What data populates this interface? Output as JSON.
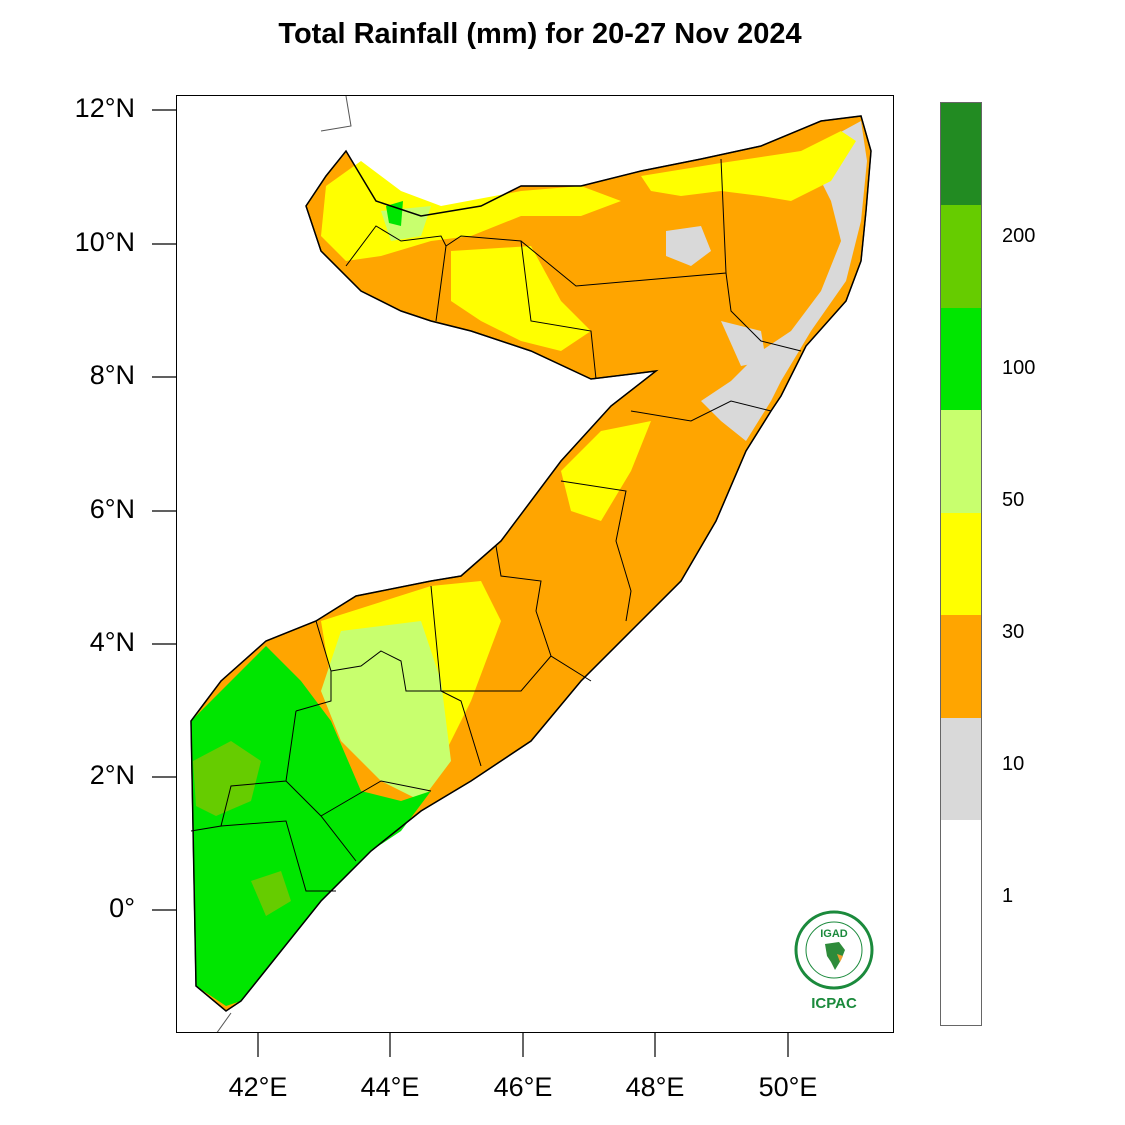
{
  "title": "Total Rainfall (mm) for 20-27 Nov 2024",
  "map": {
    "y_ticks": [
      "12°N",
      "10°N",
      "8°N",
      "6°N",
      "4°N",
      "2°N",
      "0°"
    ],
    "x_ticks": [
      "42°E",
      "44°E",
      "46°E",
      "48°E",
      "50°E"
    ],
    "lat_range": [
      -1.8,
      12.2
    ],
    "lon_range": [
      40.8,
      51.6
    ]
  },
  "legend": {
    "colors": [
      "#d9d9d9",
      "#ffa500",
      "#ffff00",
      "#c8ff6e",
      "#00e600",
      "#00d200",
      "#66cc00",
      "#228b22",
      "#1a7a1a"
    ],
    "labels": [
      "1",
      "10",
      "30",
      "50",
      "100",
      "200"
    ]
  },
  "logo": {
    "top_text": "IGAD",
    "bottom_text": "ICPAC"
  }
}
